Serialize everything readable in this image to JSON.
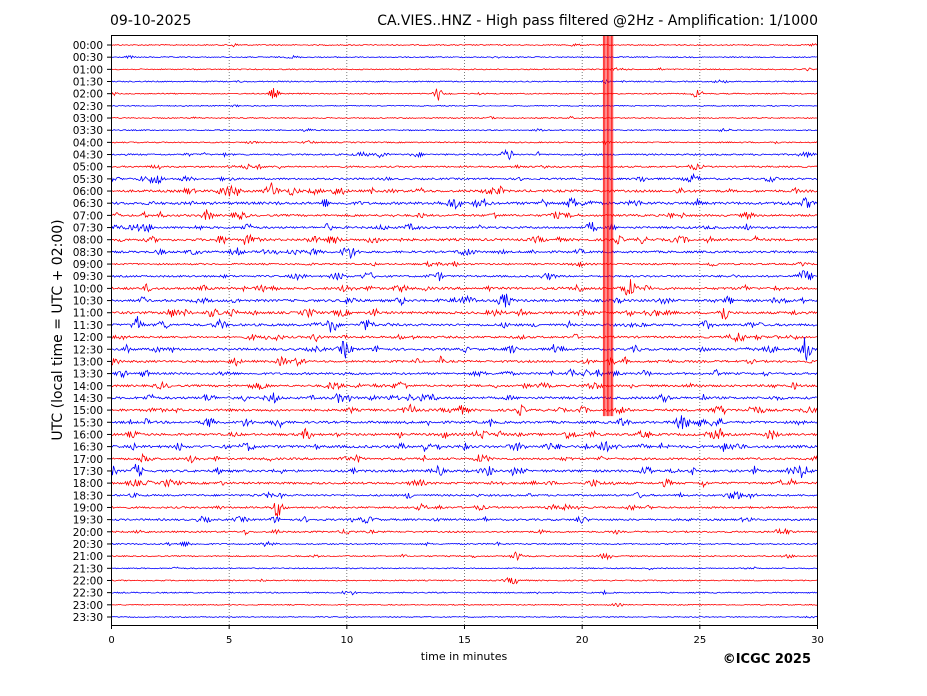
{
  "chart_data": {
    "type": "line",
    "title_left": "09-10-2025",
    "title_right": "CA.VIES..HNZ - High pass filtered @2Hz - Amplification: 1/1000",
    "xlabel": "time in minutes",
    "ylabel": "UTC (local time = UTC + 02:00)",
    "xlim": [
      0,
      30
    ],
    "xticks": [
      0,
      5,
      10,
      15,
      20,
      25,
      30
    ],
    "grid": "vertical dotted at x ticks",
    "series_colors": [
      "#ff0000",
      "#0000ff"
    ],
    "rows": [
      "00:00",
      "00:30",
      "01:00",
      "01:30",
      "02:00",
      "02:30",
      "03:00",
      "03:30",
      "04:00",
      "04:30",
      "05:00",
      "05:30",
      "06:00",
      "06:30",
      "07:00",
      "07:30",
      "08:00",
      "08:30",
      "09:00",
      "09:30",
      "10:00",
      "10:30",
      "11:00",
      "11:30",
      "12:00",
      "12:30",
      "13:00",
      "13:30",
      "14:00",
      "14:30",
      "15:00",
      "15:30",
      "16:00",
      "16:30",
      "17:00",
      "17:30",
      "18:00",
      "18:30",
      "19:00",
      "19:30",
      "20:00",
      "20:30",
      "21:00",
      "21:30",
      "22:00",
      "22:30",
      "23:00",
      "23:30"
    ],
    "noise_level": [
      0.1,
      0.1,
      0.1,
      0.15,
      0.1,
      0.05,
      0.1,
      0.1,
      0.15,
      0.3,
      0.3,
      0.4,
      0.6,
      0.7,
      0.5,
      0.5,
      0.6,
      0.5,
      0.3,
      0.4,
      0.6,
      0.6,
      0.6,
      0.6,
      0.5,
      0.6,
      0.5,
      0.5,
      0.5,
      0.6,
      0.6,
      0.6,
      0.6,
      0.7,
      0.5,
      0.6,
      0.5,
      0.4,
      0.4,
      0.4,
      0.3,
      0.2,
      0.15,
      0.1,
      0.15,
      0.15,
      0.05,
      0.05
    ],
    "events": [
      {
        "row": 4,
        "minute": 6.9,
        "amp": 6
      },
      {
        "row": 4,
        "minute": 13.9,
        "amp": 7
      },
      {
        "row": 4,
        "minute": 24.9,
        "amp": 5
      },
      {
        "row": 9,
        "minute": 16.8,
        "amp": 6
      },
      {
        "row": 22,
        "minute": 26.0,
        "amp": 10
      },
      {
        "row": 23,
        "minute": 1.1,
        "amp": 10
      },
      {
        "row": 25,
        "minute": 29.5,
        "amp": 8
      },
      {
        "row": 35,
        "minute": 1.1,
        "amp": 8
      },
      {
        "row": 42,
        "minute": 17.2,
        "amp": 5
      },
      {
        "row": 42,
        "minute": 21.0,
        "amp": 5
      }
    ],
    "saturated_event": {
      "minute_start": 20.9,
      "minute_end": 21.3,
      "last_row": 30
    }
  },
  "credit": "©ICGC 2025"
}
